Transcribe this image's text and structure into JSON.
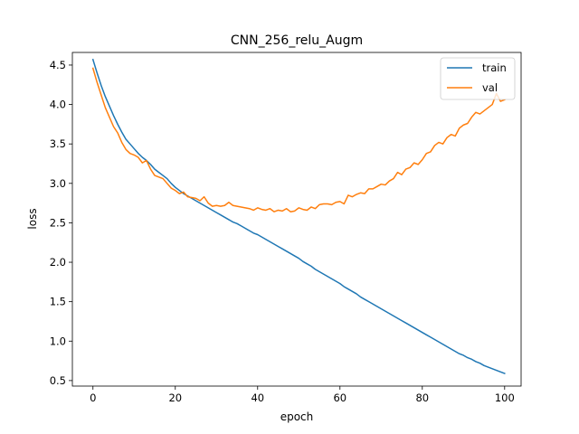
{
  "chart_data": {
    "type": "line",
    "title": "CNN_256_relu_Augm",
    "xlabel": "epoch",
    "ylabel": "loss",
    "xlim": [
      -5,
      104
    ],
    "ylim": [
      0.43,
      4.66
    ],
    "xticks": [
      0,
      20,
      40,
      60,
      80,
      100
    ],
    "yticks": [
      0.5,
      1.0,
      1.5,
      2.0,
      2.5,
      3.0,
      3.5,
      4.0,
      4.5
    ],
    "xtick_labels": [
      "0",
      "20",
      "40",
      "60",
      "80",
      "100"
    ],
    "ytick_labels": [
      "0.5",
      "1.0",
      "1.5",
      "2.0",
      "2.5",
      "3.0",
      "3.5",
      "4.0",
      "4.5"
    ],
    "legend_position": "top-right",
    "grid": false,
    "series": [
      {
        "name": "train",
        "color": "#1f77b4",
        "values": [
          4.57,
          4.4,
          4.24,
          4.1,
          3.98,
          3.86,
          3.75,
          3.65,
          3.56,
          3.5,
          3.44,
          3.38,
          3.33,
          3.29,
          3.24,
          3.18,
          3.14,
          3.1,
          3.06,
          3.0,
          2.95,
          2.91,
          2.87,
          2.84,
          2.81,
          2.78,
          2.75,
          2.72,
          2.69,
          2.66,
          2.63,
          2.6,
          2.57,
          2.54,
          2.51,
          2.49,
          2.46,
          2.43,
          2.4,
          2.37,
          2.35,
          2.32,
          2.29,
          2.26,
          2.23,
          2.2,
          2.17,
          2.14,
          2.11,
          2.08,
          2.05,
          2.01,
          1.98,
          1.95,
          1.91,
          1.88,
          1.85,
          1.82,
          1.79,
          1.76,
          1.73,
          1.69,
          1.66,
          1.63,
          1.6,
          1.56,
          1.53,
          1.5,
          1.47,
          1.44,
          1.41,
          1.38,
          1.35,
          1.32,
          1.29,
          1.26,
          1.23,
          1.2,
          1.17,
          1.14,
          1.11,
          1.08,
          1.05,
          1.02,
          0.99,
          0.96,
          0.93,
          0.9,
          0.87,
          0.84,
          0.82,
          0.79,
          0.77,
          0.74,
          0.72,
          0.69,
          0.67,
          0.65,
          0.63,
          0.61,
          0.59
        ]
      },
      {
        "name": "val",
        "color": "#ff7f0e",
        "values": [
          4.46,
          4.28,
          4.12,
          3.96,
          3.84,
          3.72,
          3.64,
          3.52,
          3.43,
          3.38,
          3.36,
          3.33,
          3.26,
          3.29,
          3.18,
          3.1,
          3.08,
          3.06,
          3.0,
          2.94,
          2.91,
          2.87,
          2.89,
          2.83,
          2.82,
          2.81,
          2.78,
          2.83,
          2.75,
          2.71,
          2.72,
          2.71,
          2.72,
          2.76,
          2.72,
          2.71,
          2.7,
          2.69,
          2.68,
          2.66,
          2.69,
          2.67,
          2.66,
          2.68,
          2.64,
          2.66,
          2.65,
          2.68,
          2.64,
          2.65,
          2.69,
          2.67,
          2.66,
          2.7,
          2.68,
          2.73,
          2.74,
          2.74,
          2.73,
          2.76,
          2.77,
          2.74,
          2.85,
          2.83,
          2.86,
          2.88,
          2.87,
          2.93,
          2.93,
          2.96,
          2.99,
          2.98,
          3.03,
          3.06,
          3.14,
          3.11,
          3.18,
          3.2,
          3.26,
          3.24,
          3.3,
          3.38,
          3.4,
          3.48,
          3.52,
          3.5,
          3.58,
          3.62,
          3.6,
          3.7,
          3.74,
          3.76,
          3.84,
          3.9,
          3.88,
          3.92,
          3.96,
          4.0,
          4.14,
          4.04,
          4.06
        ]
      }
    ]
  }
}
